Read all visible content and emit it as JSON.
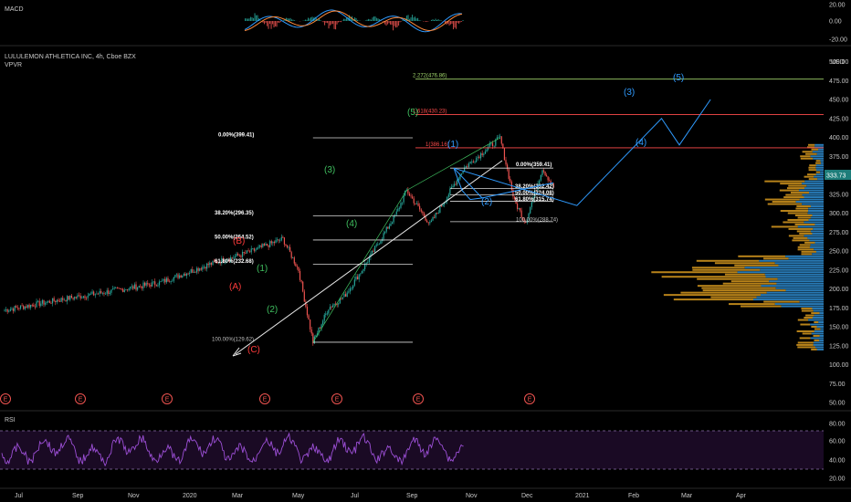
{
  "header": {
    "symbol": "LULULEMON ATHLETICA INC, 4h, Cboe BZX",
    "indicator": "VPVR",
    "currency": "USD"
  },
  "macd": {
    "label": "MACD",
    "ticks": [
      "20.00",
      "0.00",
      "-20.00"
    ]
  },
  "rsi": {
    "label": "RSI",
    "ticks": [
      "80.00",
      "60.00",
      "40.00",
      "20.00"
    ]
  },
  "price_axis": {
    "ticks": [
      "500.00",
      "475.00",
      "450.00",
      "425.00",
      "400.00",
      "375.00",
      "350.00",
      "325.00",
      "300.00",
      "275.00",
      "250.00",
      "225.00",
      "200.00",
      "175.00",
      "150.00",
      "125.00",
      "100.00",
      "75.00",
      "50.00"
    ],
    "last_price": "333.73",
    "last_price_color": "#1e7d7a"
  },
  "time_axis": {
    "ticks": [
      "Jul",
      "Sep",
      "Nov",
      "2020",
      "Mar",
      "May",
      "Jul",
      "Sep",
      "Nov",
      "Dec",
      "2021",
      "Feb",
      "Mar",
      "Apr"
    ]
  },
  "fib_left": {
    "levels": [
      "0.00%(399.41)",
      "38.20%(296.35)",
      "50.00%(264.52)",
      "61.80%(232.68)",
      "100.00%(129.62)"
    ]
  },
  "fib_right": {
    "levels": [
      "0.00%(359.41)",
      "38.20%(332.42)",
      "50.00%(324.08)",
      "61.80%(315.74)",
      "100.00%(288.74)"
    ]
  },
  "fib_ext": {
    "levels": [
      "2.272(476.86)",
      "1.618(430.23)",
      "1(386.16)"
    ],
    "colors": [
      "#9fd46a",
      "#ff4b4b",
      "#ff4b4b"
    ]
  },
  "waves": {
    "red": [
      "(A)",
      "(B)",
      "(C)"
    ],
    "green": [
      "(1)",
      "(2)",
      "(3)",
      "(4)",
      "(5)"
    ],
    "blue": [
      "(1)",
      "(2)",
      "(3)",
      "(4)",
      "(5)"
    ]
  },
  "earnings_marker": "E",
  "colors": {
    "up": "#26a69a",
    "down": "#ef5350",
    "wave_blue": "#2f9bff",
    "wave_green": "#3fbf5f",
    "wave_red": "#ff3b3b",
    "vp_up": "#2f8fd6",
    "vp_down": "#d89a1e",
    "rsi_line": "#9c4fd6"
  },
  "chart_data": {
    "type": "candlestick",
    "title": "LULULEMON ATHLETICA INC, 4h, Cboe BZX",
    "ylabel": "USD",
    "ylim": [
      50,
      500
    ],
    "price_path": [
      {
        "date": "2019-06-15",
        "price": 172
      },
      {
        "date": "2019-08-01",
        "price": 185
      },
      {
        "date": "2019-09-15",
        "price": 196
      },
      {
        "date": "2019-11-01",
        "price": 208
      },
      {
        "date": "2019-12-15",
        "price": 232
      },
      {
        "date": "2020-01-20",
        "price": 248
      },
      {
        "date": "2020-02-20",
        "price": 266
      },
      {
        "date": "2020-03-05",
        "price": 225
      },
      {
        "date": "2020-03-18",
        "price": 129.62
      },
      {
        "date": "2020-04-01",
        "price": 175
      },
      {
        "date": "2020-04-15",
        "price": 190
      },
      {
        "date": "2020-05-01",
        "price": 225
      },
      {
        "date": "2020-06-01",
        "price": 300
      },
      {
        "date": "2020-06-10",
        "price": 330
      },
      {
        "date": "2020-07-01",
        "price": 285
      },
      {
        "date": "2020-08-01",
        "price": 360
      },
      {
        "date": "2020-09-02",
        "price": 399.41
      },
      {
        "date": "2020-09-15",
        "price": 315
      },
      {
        "date": "2020-09-25",
        "price": 288.74
      },
      {
        "date": "2020-10-10",
        "price": 359.41
      },
      {
        "date": "2020-10-20",
        "price": 333.73
      }
    ],
    "projection": [
      {
        "date": "2020-11-10",
        "price": 310
      },
      {
        "date": "2021-01-25",
        "price": 425
      },
      {
        "date": "2021-02-10",
        "price": 390
      },
      {
        "date": "2021-03-10",
        "price": 450
      }
    ],
    "fib_retracement_1": [
      {
        "level": "0.00%",
        "price": 399.41
      },
      {
        "level": "38.20%",
        "price": 296.35
      },
      {
        "level": "50.00%",
        "price": 264.52
      },
      {
        "level": "61.80%",
        "price": 232.68
      },
      {
        "level": "100.00%",
        "price": 129.62
      }
    ],
    "fib_retracement_2": [
      {
        "level": "0.00%",
        "price": 359.41
      },
      {
        "level": "38.20%",
        "price": 332.42
      },
      {
        "level": "50.00%",
        "price": 324.08
      },
      {
        "level": "61.80%",
        "price": 315.74
      },
      {
        "level": "100.00%",
        "price": 288.74
      }
    ],
    "fib_extension": [
      {
        "level": "1",
        "price": 386.16
      },
      {
        "level": "1.618",
        "price": 430.23
      },
      {
        "level": "2.272",
        "price": 476.86
      }
    ],
    "earnings_dates": [
      "2019-09-05",
      "2019-12-11",
      "2020-03-26",
      "2020-06-11",
      "2020-09-08",
      "2020-12-10"
    ],
    "last_price": 333.73
  }
}
